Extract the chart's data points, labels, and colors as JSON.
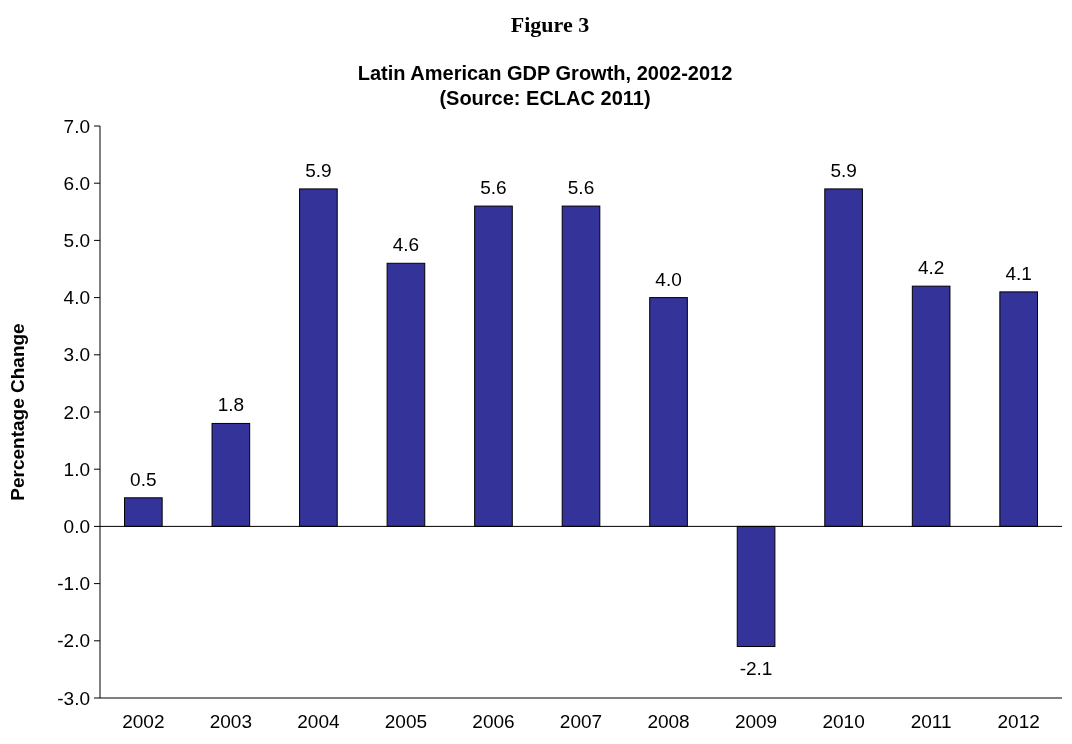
{
  "chart_data": {
    "type": "bar",
    "title": "Figure 3",
    "subtitle": "Latin American GDP Growth, 2002-2012\n(Source: ECLAC 2011)",
    "ylabel": "Percentage Change",
    "categories": [
      "2002",
      "2003",
      "2004",
      "2005",
      "2006",
      "2007",
      "2008",
      "2009",
      "2010",
      "2011",
      "2012"
    ],
    "values": [
      0.5,
      1.8,
      5.9,
      4.6,
      5.6,
      5.6,
      4.0,
      -2.1,
      5.9,
      4.2,
      4.1
    ],
    "value_labels": [
      "0.5",
      "1.8",
      "5.9",
      "4.6",
      "5.6",
      "5.6",
      "4.0",
      "-2.1",
      "5.9",
      "4.2",
      "4.1"
    ],
    "color": "#333399",
    "ylim": [
      -3,
      7
    ],
    "yticks": [
      {
        "value": -3,
        "label": "-3.0"
      },
      {
        "value": -2,
        "label": "-2.0"
      },
      {
        "value": -1,
        "label": "-1.0"
      },
      {
        "value": 0,
        "label": "0.0"
      },
      {
        "value": 1,
        "label": "1.0"
      },
      {
        "value": 2,
        "label": "2.0"
      },
      {
        "value": 3,
        "label": "3.0"
      },
      {
        "value": 4,
        "label": "4.0"
      },
      {
        "value": 5,
        "label": "5.0"
      },
      {
        "value": 6,
        "label": "6.0"
      },
      {
        "value": 7,
        "label": "7.0"
      }
    ],
    "ref_lines": [
      {
        "axis": "y",
        "value": 0,
        "color": "#000000"
      }
    ]
  }
}
